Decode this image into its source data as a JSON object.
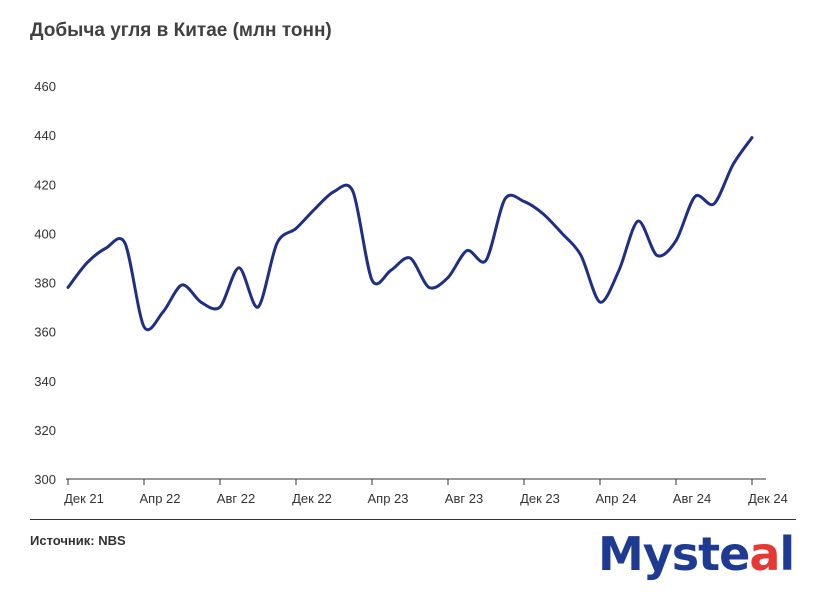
{
  "title": "Добыча угля в Китае (млн тонн)",
  "source": "Источник: NBS",
  "logo": {
    "text_before": "Myste",
    "mark": "a",
    "text_after": "l",
    "colors": {
      "primary": "#1f3a93",
      "accent": "#e53935"
    }
  },
  "colors": {
    "line": "#1f2f86",
    "axis": "#333333",
    "text": "#333333"
  },
  "chart_data": {
    "type": "line",
    "title": "Добыча угля в Китае (млн тонн)",
    "xlabel": "",
    "ylabel": "",
    "ylim": [
      300,
      460
    ],
    "yticks": [
      300,
      320,
      340,
      360,
      380,
      400,
      420,
      440,
      460
    ],
    "grid": false,
    "legend": "none",
    "x_tick_labels": [
      "Дек 21",
      "Апр 22",
      "Авг 22",
      "Дек 22",
      "Апр 23",
      "Авг 23",
      "Дек 23",
      "Апр 24",
      "Авг 24",
      "Дек 24"
    ],
    "x": [
      "2021-12",
      "2022-01",
      "2022-02",
      "2022-03",
      "2022-04",
      "2022-05",
      "2022-06",
      "2022-07",
      "2022-08",
      "2022-09",
      "2022-10",
      "2022-11",
      "2022-12",
      "2023-01",
      "2023-02",
      "2023-03",
      "2023-04",
      "2023-05",
      "2023-06",
      "2023-07",
      "2023-08",
      "2023-09",
      "2023-10",
      "2023-11",
      "2023-12",
      "2024-01",
      "2024-02",
      "2024-03",
      "2024-04",
      "2024-05",
      "2024-06",
      "2024-07",
      "2024-08",
      "2024-09",
      "2024-10",
      "2024-11",
      "2024-12"
    ],
    "series": [
      {
        "values": [
          378,
          388,
          394,
          396,
          362,
          368,
          379,
          372,
          370,
          386,
          370,
          396,
          402,
          410,
          417,
          417,
          381,
          385,
          390,
          378,
          382,
          393,
          389,
          414,
          413,
          408,
          400,
          391,
          372,
          385,
          405,
          391,
          397,
          415,
          412,
          428,
          439
        ]
      }
    ]
  }
}
